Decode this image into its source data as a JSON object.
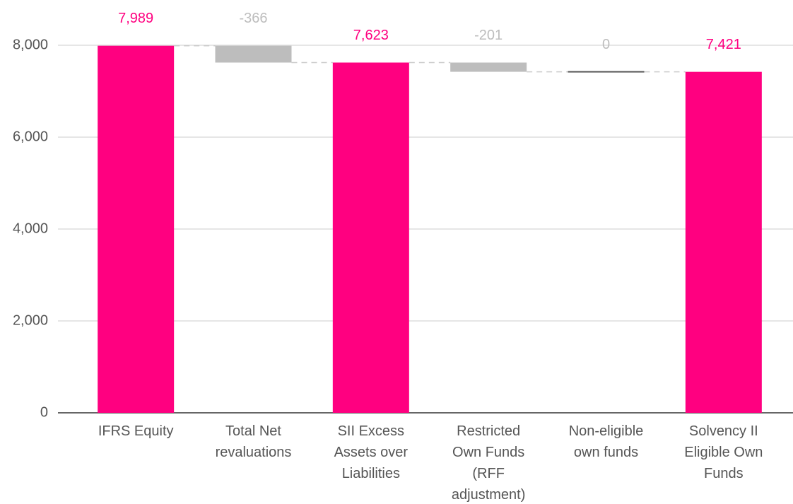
{
  "chart_data": {
    "type": "waterfall",
    "categories": [
      "IFRS Equity",
      "Total Net revaluations",
      "SII Excess Assets over Liabilities",
      "Restricted Own Funds (RFF adjustment)",
      "Non-eligible own funds",
      "Solvency II Eligible Own Funds"
    ],
    "values": [
      7989,
      -366,
      7623,
      -201,
      0,
      7421
    ],
    "value_labels": [
      "7,989",
      "-366",
      "7,623",
      "-201",
      "0",
      "7,421"
    ],
    "measures": [
      "total",
      "relative",
      "total",
      "relative",
      "relative",
      "total"
    ],
    "colors": {
      "total": "#ff0080",
      "decrease": "#bdbdbd",
      "zero": "#555555"
    },
    "ylim": [
      0,
      8000
    ],
    "yticks": [
      0,
      {
        "value": 2000,
        "label": "2,000"
      },
      {
        "value": 4000,
        "label": "4,000"
      },
      {
        "value": 6000,
        "label": "6,000"
      },
      {
        "value": 8000,
        "label": "8,000"
      }
    ],
    "grid": true
  }
}
